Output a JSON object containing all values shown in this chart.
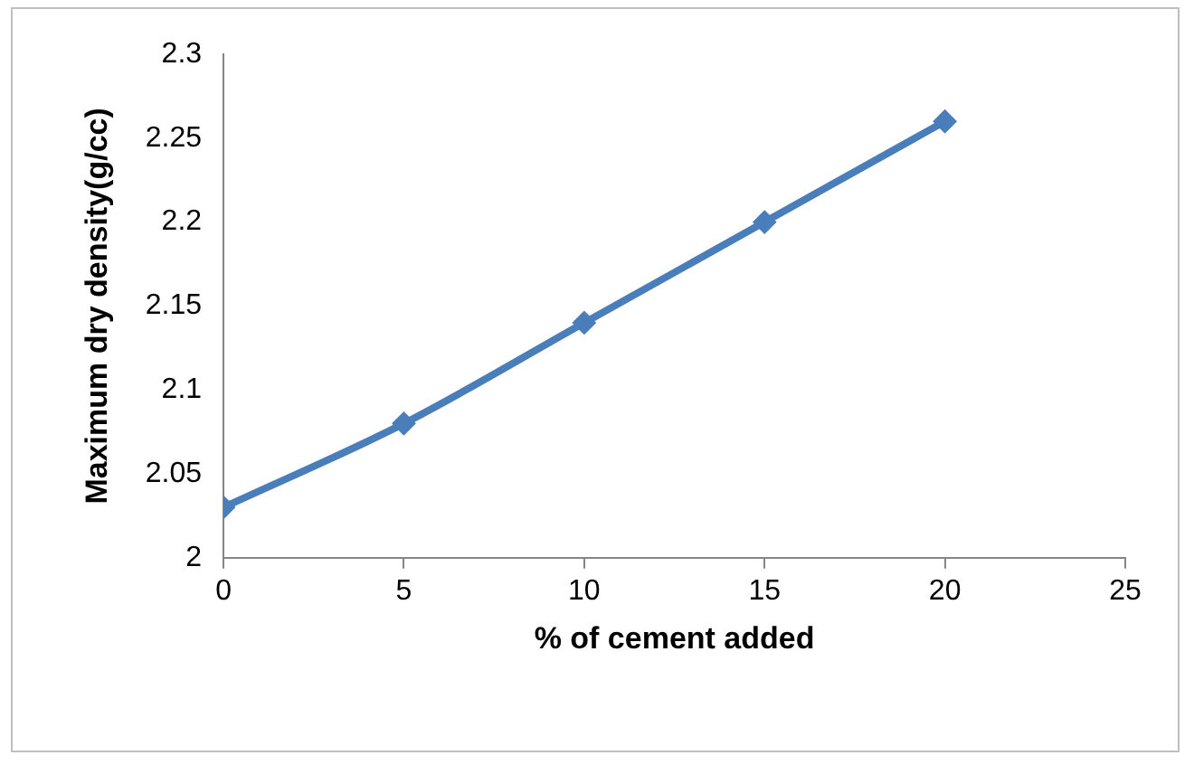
{
  "chart_data": {
    "type": "line",
    "xlabel": "% of cement added",
    "ylabel": "Maximum dry density(g/cc)",
    "x": [
      0,
      5,
      10,
      15,
      20
    ],
    "series": [
      {
        "color": "#4a7ebb",
        "values": [
          2.03,
          2.08,
          2.14,
          2.2,
          2.26
        ]
      }
    ],
    "xlim": [
      0,
      25
    ],
    "xticks": [
      0,
      5,
      10,
      15,
      20,
      25
    ],
    "ylim": [
      2,
      2.3
    ],
    "yticks": [
      2,
      2.05,
      2.1,
      2.15,
      2.2,
      2.25,
      2.3
    ],
    "grid": false,
    "legend": false,
    "marker": "diamond",
    "line_style": "solid"
  }
}
